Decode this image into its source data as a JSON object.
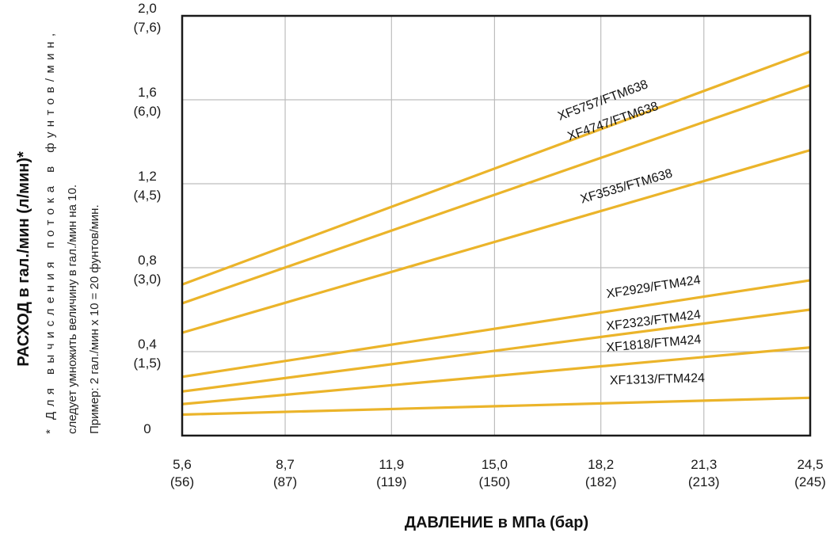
{
  "chart_data": {
    "type": "line",
    "title": "",
    "xlabel": "ДАВЛЕНИЕ в МПа (бар)",
    "ylabel": "РАСХОД в гал./мин (л/мин)*",
    "footnote": {
      "marker": "*",
      "lines": [
        "Для вычисления потока в фунтов/мин,",
        "следует умножить величину в гал./мин на 10.",
        "Пример: 2 гал./мин x 10 = 20 фунтов/мин."
      ]
    },
    "xlim": [
      5.6,
      24.5
    ],
    "ylim": [
      0,
      2.0
    ],
    "grid": true,
    "line_color": "#EBB42A",
    "x_ticks": [
      {
        "value": 5.6,
        "label": "5,6",
        "sub": "(56)"
      },
      {
        "value": 8.7,
        "label": "8,7",
        "sub": "(87)"
      },
      {
        "value": 11.9,
        "label": "11,9",
        "sub": "(119)"
      },
      {
        "value": 15.0,
        "label": "15,0",
        "sub": "(150)"
      },
      {
        "value": 18.2,
        "label": "18,2",
        "sub": "(182)"
      },
      {
        "value": 21.3,
        "label": "21,3",
        "sub": "(213)"
      },
      {
        "value": 24.5,
        "label": "24,5",
        "sub": "(245)"
      }
    ],
    "y_ticks": [
      {
        "value": 0,
        "label": "0",
        "sub": ""
      },
      {
        "value": 0.4,
        "label": "0,4",
        "sub": "(1,5)"
      },
      {
        "value": 0.8,
        "label": "0,8",
        "sub": "(3,0)"
      },
      {
        "value": 1.2,
        "label": "1,2",
        "sub": "(4,5)"
      },
      {
        "value": 1.6,
        "label": "1,6",
        "sub": "(6,0)"
      },
      {
        "value": 2.0,
        "label": "2,0",
        "sub": "(7,6)"
      }
    ],
    "series": [
      {
        "name": "XF5757/FTM638",
        "x": [
          5.6,
          24.5
        ],
        "y": [
          0.72,
          1.83
        ],
        "label_at": [
          18.3,
          1.58
        ]
      },
      {
        "name": "XF4747/FTM638",
        "x": [
          5.6,
          24.5
        ],
        "y": [
          0.63,
          1.67
        ],
        "label_at": [
          18.6,
          1.48
        ]
      },
      {
        "name": "XF3535/FTM638",
        "x": [
          5.6,
          24.5
        ],
        "y": [
          0.49,
          1.36
        ],
        "label_at": [
          19.0,
          1.17
        ]
      },
      {
        "name": "XF2929/FTM424",
        "x": [
          5.6,
          24.5
        ],
        "y": [
          0.28,
          0.74
        ],
        "label_at": [
          19.8,
          0.69
        ]
      },
      {
        "name": "XF2323/FTM424",
        "x": [
          5.6,
          24.5
        ],
        "y": [
          0.21,
          0.6
        ],
        "label_at": [
          19.8,
          0.53
        ]
      },
      {
        "name": "XF1818/FTM424",
        "x": [
          5.6,
          24.5
        ],
        "y": [
          0.15,
          0.42
        ],
        "label_at": [
          19.8,
          0.42
        ]
      },
      {
        "name": "XF1313/FTM424",
        "x": [
          5.6,
          24.5
        ],
        "y": [
          0.1,
          0.18
        ],
        "label_at": [
          19.9,
          0.25
        ]
      }
    ]
  }
}
